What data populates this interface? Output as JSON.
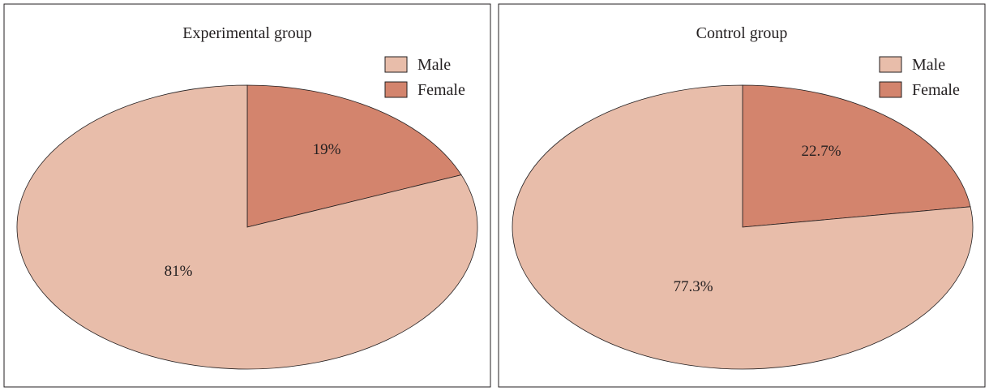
{
  "chart_data": [
    {
      "type": "pie",
      "title": "Experimental group",
      "categories": [
        "Male",
        "Female"
      ],
      "values": [
        81,
        19
      ],
      "labels": [
        "81%",
        "19%"
      ],
      "colors": [
        "#e8bdaa",
        "#d3846d"
      ],
      "legend": [
        "Male",
        "Female"
      ],
      "legend_position": "top-right"
    },
    {
      "type": "pie",
      "title": "Control group",
      "categories": [
        "Male",
        "Female"
      ],
      "values": [
        77.3,
        22.7
      ],
      "labels": [
        "77.3%",
        "22.7%"
      ],
      "colors": [
        "#e8bdaa",
        "#d3846d"
      ],
      "legend": [
        "Male",
        "Female"
      ],
      "legend_position": "top-right"
    }
  ]
}
